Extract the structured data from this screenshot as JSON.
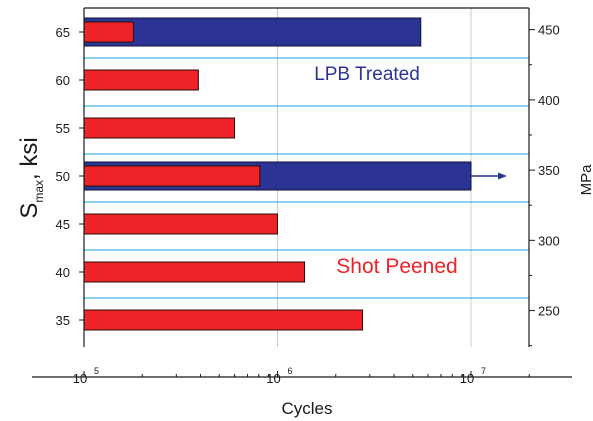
{
  "chart_data": {
    "type": "bar",
    "orientation": "horizontal",
    "x_scale": "log",
    "xlim": [
      100000,
      20000000
    ],
    "xlabel": "Cycles",
    "x_ticks": [
      {
        "base": "10",
        "exp": "5",
        "value": 100000
      },
      {
        "base": "10",
        "exp": "6",
        "value": 1000000
      },
      {
        "base": "10",
        "exp": "7",
        "value": 10000000
      }
    ],
    "ylabel_main": "S",
    "ylabel_sub": "max",
    "ylabel_rest": ", ksi",
    "categories": [
      "65",
      "60",
      "55",
      "50",
      "45",
      "40",
      "35"
    ],
    "ylabel_right": "MPa",
    "right_ticks": [
      "450",
      "400",
      "350",
      "300",
      "250"
    ],
    "right_tick_values": [
      450,
      400,
      350,
      300,
      250
    ],
    "series": [
      {
        "name": "LPB Treated",
        "color": "#2b3494",
        "points": [
          {
            "category": "65",
            "value": 5500000
          },
          {
            "category": "50",
            "value": 10000000,
            "runout": true
          }
        ]
      },
      {
        "name": "Shot Peened",
        "color": "#ee2227",
        "points": [
          {
            "category": "65",
            "value": 180000
          },
          {
            "category": "60",
            "value": 390000
          },
          {
            "category": "55",
            "value": 600000
          },
          {
            "category": "50",
            "value": 810000
          },
          {
            "category": "45",
            "value": 1000000
          },
          {
            "category": "40",
            "value": 1380000
          },
          {
            "category": "35",
            "value": 2750000
          }
        ]
      }
    ],
    "grid": true,
    "colors": {
      "grid_vertical": "#c8c8c8",
      "grid_horizontal": "#3fb6e6",
      "axis": "#1a1a1a"
    }
  }
}
